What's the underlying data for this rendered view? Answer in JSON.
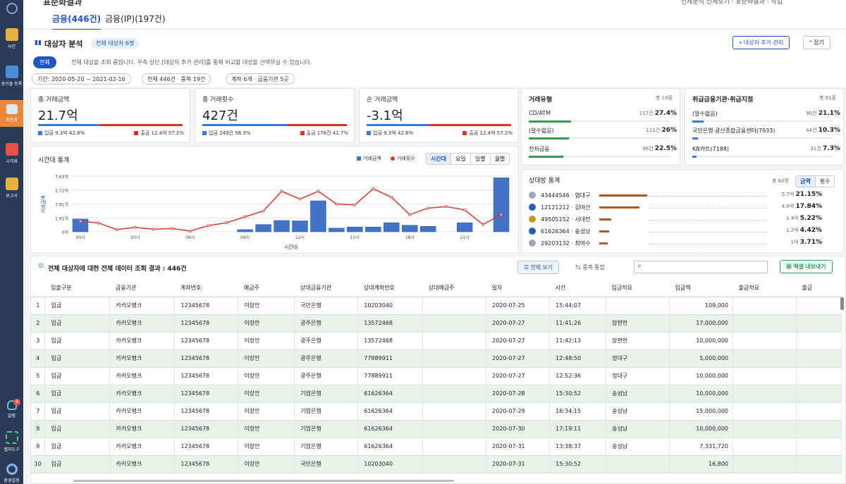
{
  "sidebar": {
    "items": [
      {
        "label": "사건"
      },
      {
        "label": "증거물 등록"
      },
      {
        "label": "표준화"
      },
      {
        "label": "시각화"
      },
      {
        "label": "보고서"
      },
      {
        "label": "알림",
        "badge": "9"
      },
      {
        "label": "캡처도구"
      },
      {
        "label": "환경설정"
      }
    ]
  },
  "titlebar": {
    "title": "표준화결과",
    "right_text": "전체분석 전체보기 · 표준화결과 · 작업"
  },
  "tabs": [
    {
      "label": "금융(446건)"
    },
    {
      "label": "금융(IP)(197건)"
    }
  ],
  "header": {
    "title": "대상자 분석",
    "total_badge": "전체 대상자 6명",
    "all_button": "전체",
    "description": "전체 대상을 조회 중입니다. 우측 상단 [대상자 추가·관리]를 통해 비교할 대상을 선택하실 수 있습니다.",
    "add_button": "+ 대상자 추가·관리",
    "fold_button": "^ 접기",
    "chips": [
      "기간: 2020-05-20 ~ 2021-02-16",
      "전체 446건 · 중복 19건",
      "계좌 6개 · 금융기관 5곳"
    ]
  },
  "kpis": [
    {
      "label": "총 거래금액",
      "value": "21.7억",
      "left": "입금 9.3억 42.8%",
      "right": "출금 12.4억 57.2%",
      "in_ratio": 0.428
    },
    {
      "label": "총 거래횟수",
      "value": "427건",
      "left": "입금 249건 58.3%",
      "right": "출금 178건 41.7%",
      "in_ratio": 0.583
    },
    {
      "label": "순 거래금액",
      "value": "-3.1억",
      "left": "입금 9.3억 42.8%",
      "right": "출금 12.4억 57.2%",
      "in_ratio": 0.428
    }
  ],
  "trade_types": {
    "title": "거래유형",
    "total": "총 10종",
    "rows": [
      {
        "name": "CD/ATM",
        "count": "117건",
        "pct": "27.4%",
        "ratio": 0.274
      },
      {
        "name": "(알수없음)",
        "count": "111건",
        "pct": "26%",
        "ratio": 0.26
      },
      {
        "name": "전자금융",
        "count": "96건",
        "pct": "22.5%",
        "ratio": 0.225
      }
    ]
  },
  "institutions": {
    "title": "취급금융기관·취급지점",
    "total": "총 81종",
    "rows": [
      {
        "name": "(알수없음)",
        "count": "90건",
        "pct": "21.1%",
        "ratio": 0.211
      },
      {
        "name": "국민은행·광산종합금융센터(7933)",
        "count": "44건",
        "pct": "10.3%",
        "ratio": 0.103
      },
      {
        "name": "KB카트(7188)",
        "count": "31건",
        "pct": "7.3%",
        "ratio": 0.073
      }
    ]
  },
  "time_chart": {
    "title": "시간대 통계",
    "legend": [
      "거래금액",
      "거래횟수"
    ],
    "segments": [
      "시간대",
      "요일",
      "일별",
      "월별"
    ],
    "colors": {
      "amount": "#4472c4",
      "count": "#d9362c"
    }
  },
  "chart_data": {
    "type": "bar+line",
    "categories": [
      "00시",
      "01시",
      "02시",
      "03시",
      "04시",
      "05시",
      "06시",
      "07시",
      "08시",
      "09시",
      "10시",
      "11시",
      "12시",
      "13시",
      "14시",
      "15시",
      "16시",
      "17시",
      "18시",
      "19시",
      "20시",
      "21시",
      "22시",
      "23시"
    ],
    "x_tick_labels": [
      "00시",
      "03시",
      "06시",
      "09시",
      "12시",
      "15시",
      "18시",
      "21시"
    ],
    "xlabel": "시간대",
    "ylabel": "거래금액",
    "y_tick_labels": [
      "7.63억",
      "5.72억",
      "3.81억",
      "1.91억",
      "0억"
    ],
    "ylim": [
      0,
      7.63
    ],
    "series": [
      {
        "name": "거래금액",
        "type": "bar",
        "values": [
          1.75,
          0,
          0,
          0,
          0,
          0,
          0,
          0,
          0,
          0.3,
          1.0,
          1.55,
          1.5,
          4.25,
          0.5,
          0.65,
          0.65,
          1.25,
          0.9,
          0.75,
          0,
          1.25,
          0,
          7.4
        ]
      },
      {
        "name": "거래횟수",
        "type": "line",
        "values": [
          1.45,
          1.2,
          0.3,
          0.6,
          0.35,
          0.45,
          0.1,
          0.85,
          1.25,
          2.05,
          2.85,
          5.55,
          4.5,
          5.55,
          3.8,
          3.7,
          5.9,
          4.75,
          2.35,
          3.25,
          3.45,
          3.0,
          1.0,
          2.35
        ]
      }
    ]
  },
  "counterparts": {
    "title": "상대방 통계",
    "total": "총 60명",
    "toggle": [
      "금액",
      "횟수"
    ],
    "rows": [
      {
        "name": "43444546 · 염대구",
        "sub": "5.7억",
        "pct": "21.15%",
        "ratio": 0.2115,
        "color": "#9aa7b8"
      },
      {
        "name": "12121212 · 김마산",
        "sub": "4.8억",
        "pct": "17.84%",
        "ratio": 0.1784,
        "color": "#2b59c3"
      },
      {
        "name": "49505152 · 서대전",
        "sub": "1.4억",
        "pct": "5.22%",
        "ratio": 0.0522,
        "color": "#c79a1a"
      },
      {
        "name": "61626364 · 송성남",
        "sub": "1.2억",
        "pct": "4.42%",
        "ratio": 0.0442,
        "color": "#1f5fb4"
      },
      {
        "name": "29203132 · 최여수",
        "sub": "1억",
        "pct": "3.71%",
        "ratio": 0.0371,
        "color": "#9aa7b8"
      }
    ]
  },
  "result": {
    "title": "전체 대상자에 대한 전체 데이터 조회 결과 : 446건",
    "view_all": "전체 보기",
    "dedupe": "중복 통합",
    "search_placeholder": "",
    "export": "엑셀 내보내기"
  },
  "table": {
    "headers": [
      "",
      "입출구분",
      "금융기관",
      "계좌번호",
      "예금주",
      "상대금융기관",
      "상대계좌번호",
      "상대예금주",
      "일자",
      "시간",
      "입금적요",
      "입금액",
      "출금적요",
      "출금"
    ],
    "rows": [
      {
        "cells": [
          "1",
          "입금",
          "카카오뱅크",
          "12345678",
          "이장안",
          "국민은행",
          "10203040",
          "",
          "2020-07-25",
          "15:44:07",
          "",
          "109,000",
          "",
          ""
        ],
        "green": false
      },
      {
        "cells": [
          "2",
          "입금",
          "카카오뱅크",
          "12345678",
          "이장안",
          "광주은행",
          "13572468",
          "",
          "2020-07-27",
          "11:41:26",
          "장현헌",
          "17,000,000",
          "",
          ""
        ],
        "green": true
      },
      {
        "cells": [
          "3",
          "입금",
          "카카오뱅크",
          "12345678",
          "이장안",
          "광주은행",
          "13572468",
          "",
          "2020-07-27",
          "11:42:13",
          "장현헌",
          "10,000,000",
          "",
          ""
        ],
        "green": false
      },
      {
        "cells": [
          "4",
          "입금",
          "카카오뱅크",
          "12345678",
          "이장안",
          "광주은행",
          "77889911",
          "",
          "2020-07-27",
          "12:48:50",
          "정대구",
          "5,000,000",
          "",
          ""
        ],
        "green": true
      },
      {
        "cells": [
          "5",
          "입금",
          "카카오뱅크",
          "12345678",
          "이장안",
          "광주은행",
          "77889911",
          "",
          "2020-07-27",
          "12:52:36",
          "정대구",
          "10,000,000",
          "",
          ""
        ],
        "green": false
      },
      {
        "cells": [
          "6",
          "입금",
          "카카오뱅크",
          "12345678",
          "이장안",
          "기업은행",
          "61626364",
          "",
          "2020-07-28",
          "15:30:52",
          "송성남",
          "10,000,000",
          "",
          ""
        ],
        "green": true
      },
      {
        "cells": [
          "7",
          "입금",
          "카카오뱅크",
          "12345678",
          "이장안",
          "기업은행",
          "61626364",
          "",
          "2020-07-29",
          "16:34:15",
          "송성남",
          "15,000,000",
          "",
          ""
        ],
        "green": false
      },
      {
        "cells": [
          "8",
          "입금",
          "카카오뱅크",
          "12345678",
          "이장안",
          "기업은행",
          "61626364",
          "",
          "2020-07-30",
          "17:19:11",
          "송성남",
          "10,000,000",
          "",
          ""
        ],
        "green": true
      },
      {
        "cells": [
          "9",
          "입금",
          "카카오뱅크",
          "12345678",
          "이장안",
          "기업은행",
          "61626364",
          "",
          "2020-07-31",
          "13:38:37",
          "송성남",
          "7,331,720",
          "",
          ""
        ],
        "green": false
      },
      {
        "cells": [
          "10",
          "입금",
          "카카오뱅크",
          "12345678",
          "이장안",
          "국민은행",
          "10203040",
          "",
          "2020-07-31",
          "15:30:52",
          "",
          "16,800",
          "",
          ""
        ],
        "green": true
      }
    ]
  }
}
